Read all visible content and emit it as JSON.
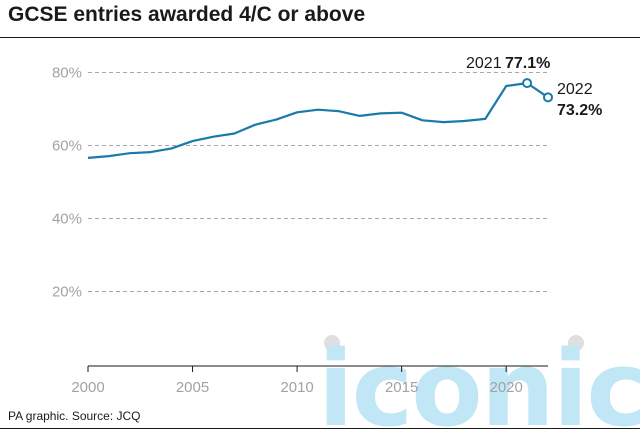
{
  "chart_data": {
    "type": "line",
    "title": "GCSE entries awarded 4/C or above",
    "source": "PA graphic. Source: JCQ",
    "x": [
      2000,
      2001,
      2002,
      2003,
      2004,
      2005,
      2006,
      2007,
      2008,
      2009,
      2010,
      2011,
      2012,
      2013,
      2014,
      2015,
      2016,
      2017,
      2018,
      2019,
      2020,
      2021,
      2022
    ],
    "series": [
      {
        "name": "",
        "values": [
          56.6,
          57.1,
          57.9,
          58.2,
          59.2,
          61.2,
          62.4,
          63.3,
          65.7,
          67.1,
          69.1,
          69.8,
          69.4,
          68.1,
          68.8,
          69.0,
          66.9,
          66.4,
          66.7,
          67.3,
          76.3,
          77.1,
          73.2
        ],
        "color": "#1a7aa8"
      }
    ],
    "yticks": [
      "20%",
      "40%",
      "60%",
      "80%"
    ],
    "ytick_values": [
      20,
      40,
      60,
      80
    ],
    "xticks": [
      "2000",
      "2005",
      "2010",
      "2015",
      "2020"
    ],
    "xtick_values": [
      2000,
      2005,
      2010,
      2015,
      2020
    ],
    "ylim": [
      0,
      85
    ],
    "xlim": [
      2000,
      2022
    ],
    "grid": true,
    "annotations": [
      {
        "year": "2021",
        "value": "77.1%",
        "x": 2021,
        "y": 77.1
      },
      {
        "year": "2022",
        "value": "73.2%",
        "x": 2022,
        "y": 73.2
      }
    ],
    "watermark": "iconic"
  }
}
